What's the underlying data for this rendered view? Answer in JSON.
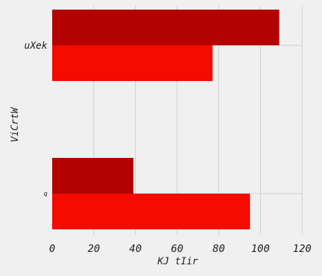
{
  "chart_data": {
    "type": "bar",
    "orientation": "horizontal",
    "categories": [
      "uXek",
      "q"
    ],
    "series": [
      {
        "values": [
          109,
          39
        ],
        "color": "#b30000"
      },
      {
        "values": [
          77,
          95
        ],
        "color": "#f50b00"
      }
    ],
    "xlabel": "KJ tIir",
    "ylabel": "ViCrtW",
    "xlim": [
      0,
      120
    ],
    "xticks": [
      "0",
      "20",
      "40",
      "60",
      "80",
      "100",
      "120"
    ],
    "grid": true,
    "legend": "none"
  }
}
